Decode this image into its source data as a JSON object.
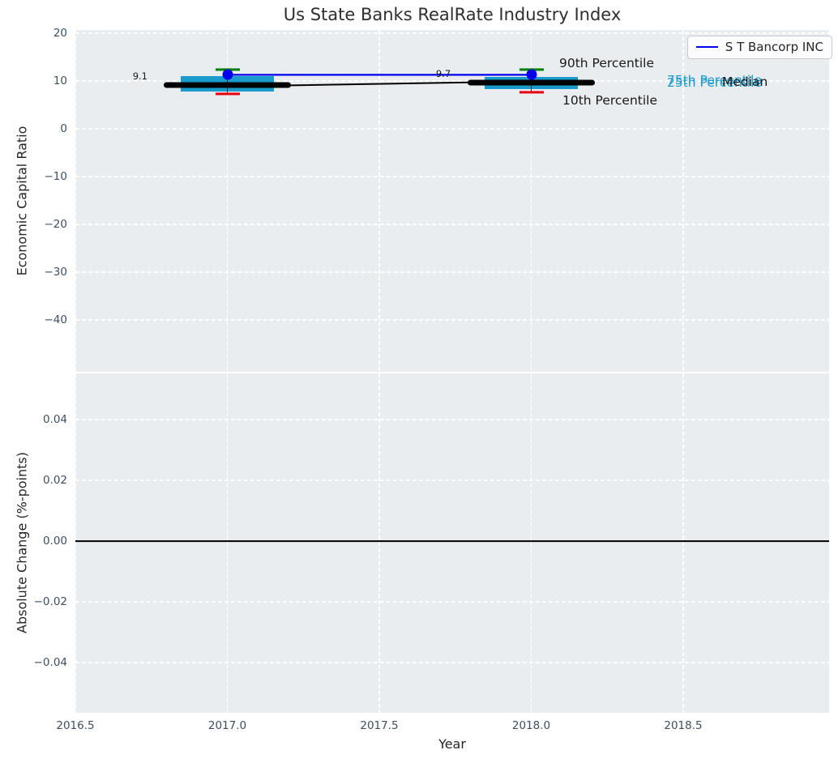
{
  "title": "Us State Banks RealRate Industry Index",
  "legend": {
    "label": "S T Bancorp INC"
  },
  "colors": {
    "plot_bg": "#e9edef",
    "grid": "#ffffff",
    "box_fill": "#1a9bcd",
    "cap_top": "#008000",
    "cap_bottom": "#e8000b",
    "median": "#000000",
    "company": "#0000ee",
    "tick_text": "#3e4e60",
    "label_text": "#262626"
  },
  "chart_data": {
    "type": "boxplot",
    "description": "Two stacked panels: yearly box/percentile summary with company line on top, absolute-change panel below",
    "xlabel": "Year",
    "xlim": [
      2016.5,
      2018.98
    ],
    "xticks": [
      {
        "v": 2016.5,
        "label": "2016.5"
      },
      {
        "v": 2017.0,
        "label": "2017.0"
      },
      {
        "v": 2017.5,
        "label": "2017.5"
      },
      {
        "v": 2018.0,
        "label": "2018.0"
      },
      {
        "v": 2018.5,
        "label": "2018.5"
      }
    ],
    "panels": [
      {
        "name": "economic-capital-ratio",
        "ylabel": "Economic Capital Ratio",
        "ylim": [
          -50.85,
          20.68
        ],
        "yticks": [
          {
            "v": 20,
            "label": "20"
          },
          {
            "v": 10,
            "label": "10"
          },
          {
            "v": 0,
            "label": "0"
          },
          {
            "v": -10,
            "label": "−10"
          },
          {
            "v": -20,
            "label": "−20"
          },
          {
            "v": -30,
            "label": "−30"
          },
          {
            "v": -40,
            "label": "−40"
          }
        ],
        "box_halfwidth_years": 0.153,
        "median_bar_halfwidth_years": 0.21,
        "boxplots": [
          {
            "x": 2017,
            "p90": 12.4,
            "p75": 11.0,
            "median": 9.1,
            "p25": 7.8,
            "p10": 7.3,
            "median_label": "9.1"
          },
          {
            "x": 2018,
            "p90": 12.4,
            "p75": 10.8,
            "median": 9.7,
            "p25": 8.3,
            "p10": 7.6,
            "median_label": "9.7"
          }
        ],
        "company_series": {
          "name": "S T Bancorp INC",
          "points": [
            {
              "x": 2017,
              "y": 11.3
            },
            {
              "x": 2018,
              "y": 11.3
            }
          ]
        },
        "annotations": [
          {
            "text": "9.1",
            "x": 89,
            "y": 57,
            "align": "right",
            "size": 11.5,
            "color": "#1a1a1a",
            "name": "median-value-2017"
          },
          {
            "text": "9.7",
            "x": 454,
            "y": 54,
            "align": "center",
            "size": 11.5,
            "color": "#1a1a1a",
            "name": "median-value-2018"
          },
          {
            "text": "90th Percentile",
            "x": 597,
            "y": 41,
            "align": "left",
            "size": 15.5,
            "color": "#1a1a1a",
            "name": "label-90th-percentile"
          },
          {
            "text": "10th Percentile",
            "x": 601,
            "y": 87,
            "align": "left",
            "size": 15.5,
            "color": "#1a1a1a",
            "name": "label-10th-percentile"
          },
          {
            "text": "75th Percentile",
            "x": 730,
            "y": 62,
            "align": "left",
            "size": 15.5,
            "color": "#1a9bcd",
            "name": "label-75th-percentile"
          },
          {
            "text": "25th Percentile",
            "x": 730,
            "y": 65,
            "align": "left",
            "size": 15.5,
            "color": "#1a9bcd",
            "name": "label-25th-percentile"
          },
          {
            "text": "Median",
            "x": 798,
            "y": 64,
            "align": "left",
            "size": 15.5,
            "color": "#111111",
            "name": "label-median"
          }
        ]
      },
      {
        "name": "absolute-change",
        "ylabel": "Absolute Change (%-points)",
        "ylim": [
          -0.0565,
          0.0552
        ],
        "yticks": [
          {
            "v": 0.04,
            "label": "0.04"
          },
          {
            "v": 0.02,
            "label": "0.02"
          },
          {
            "v": 0.0,
            "label": "0.00"
          },
          {
            "v": -0.02,
            "label": "−0.02"
          },
          {
            "v": -0.04,
            "label": "−0.04"
          }
        ],
        "zero_line": 0.0
      }
    ]
  }
}
